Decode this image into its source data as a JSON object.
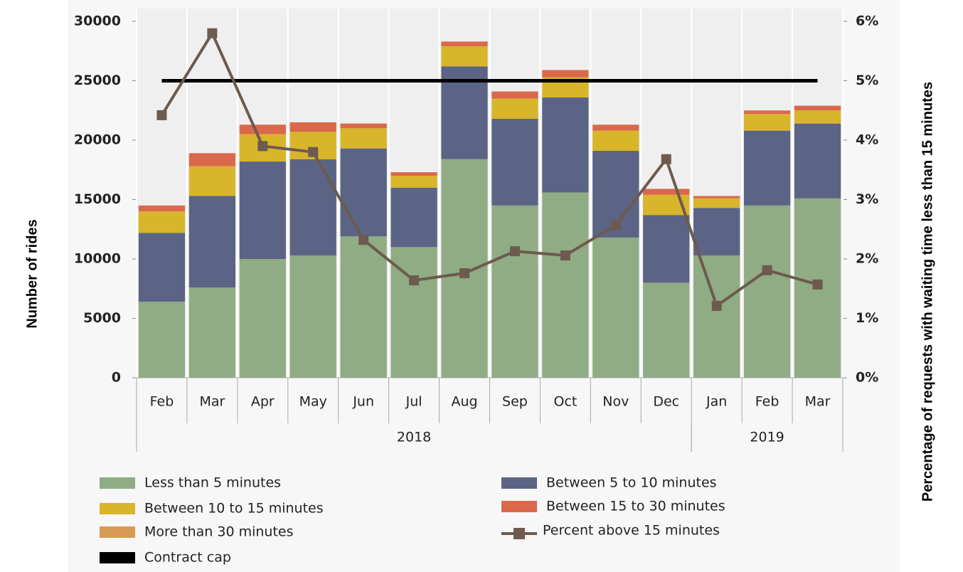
{
  "chart_data": {
    "type": "bar",
    "stacked": true,
    "y_axis_label": "Number of rides",
    "y2_axis_label": "Percentage of requests with waiting time less than 15 minutes",
    "categories": [
      "Feb",
      "Mar",
      "Apr",
      "May",
      "Jun",
      "Jul",
      "Aug",
      "Sep",
      "Oct",
      "Nov",
      "Dec",
      "Jan",
      "Feb",
      "Mar"
    ],
    "category_years": [
      "2018",
      "2018",
      "2018",
      "2018",
      "2018",
      "2018",
      "2018",
      "2018",
      "2018",
      "2018",
      "2018",
      "2019",
      "2019",
      "2019"
    ],
    "ylim": [
      0,
      30000
    ],
    "yticks": [
      0,
      5000,
      10000,
      15000,
      20000,
      25000,
      30000
    ],
    "y2lim": [
      0,
      6
    ],
    "y2ticks": [
      {
        "value": 0,
        "label": "0%"
      },
      {
        "value": 1,
        "label": "1%"
      },
      {
        "value": 2,
        "label": "2%"
      },
      {
        "value": 3,
        "label": "3%"
      },
      {
        "value": 4,
        "label": "4%"
      },
      {
        "value": 5,
        "label": "5%"
      },
      {
        "value": 6,
        "label": "6%"
      }
    ],
    "series": [
      {
        "name": "Less than 5 minutes",
        "color": "#8fac84",
        "values": [
          6400,
          7600,
          10000,
          10300,
          11900,
          11000,
          18400,
          14500,
          15600,
          11800,
          8000,
          10300,
          14500,
          15100
        ]
      },
      {
        "name": "Between  5 to 10 minutes",
        "color": "#5b6484",
        "values": [
          5800,
          7700,
          8200,
          8100,
          7400,
          5000,
          7800,
          7300,
          8000,
          7300,
          5700,
          4000,
          6300,
          6300
        ]
      },
      {
        "name": "Between  10 to 15 minutes",
        "color": "#d8b52a",
        "values": [
          1800,
          2500,
          2300,
          2300,
          1700,
          1000,
          1700,
          1700,
          1700,
          1700,
          1700,
          800,
          1400,
          1100
        ]
      },
      {
        "name": "Between  15 to 30 minutes",
        "color": "#d9694a",
        "values": [
          500,
          1100,
          800,
          800,
          400,
          300,
          400,
          600,
          600,
          500,
          500,
          200,
          300,
          400
        ]
      },
      {
        "name": "More than 30 minutes",
        "color": "#d89a55",
        "values": [
          0,
          0,
          0,
          0,
          0,
          0,
          0,
          0,
          0,
          0,
          0,
          0,
          0,
          0
        ]
      }
    ],
    "cap": {
      "name": "Contract cap",
      "color": "#000000",
      "value": 25000
    },
    "line_series": {
      "name": "Percent above 15 minutes",
      "color": "#6e5a4e",
      "axis": "y2",
      "values": [
        4.42,
        5.8,
        3.9,
        3.8,
        2.32,
        1.64,
        1.76,
        2.13,
        2.06,
        2.57,
        3.68,
        1.21,
        1.81,
        1.57
      ]
    }
  }
}
